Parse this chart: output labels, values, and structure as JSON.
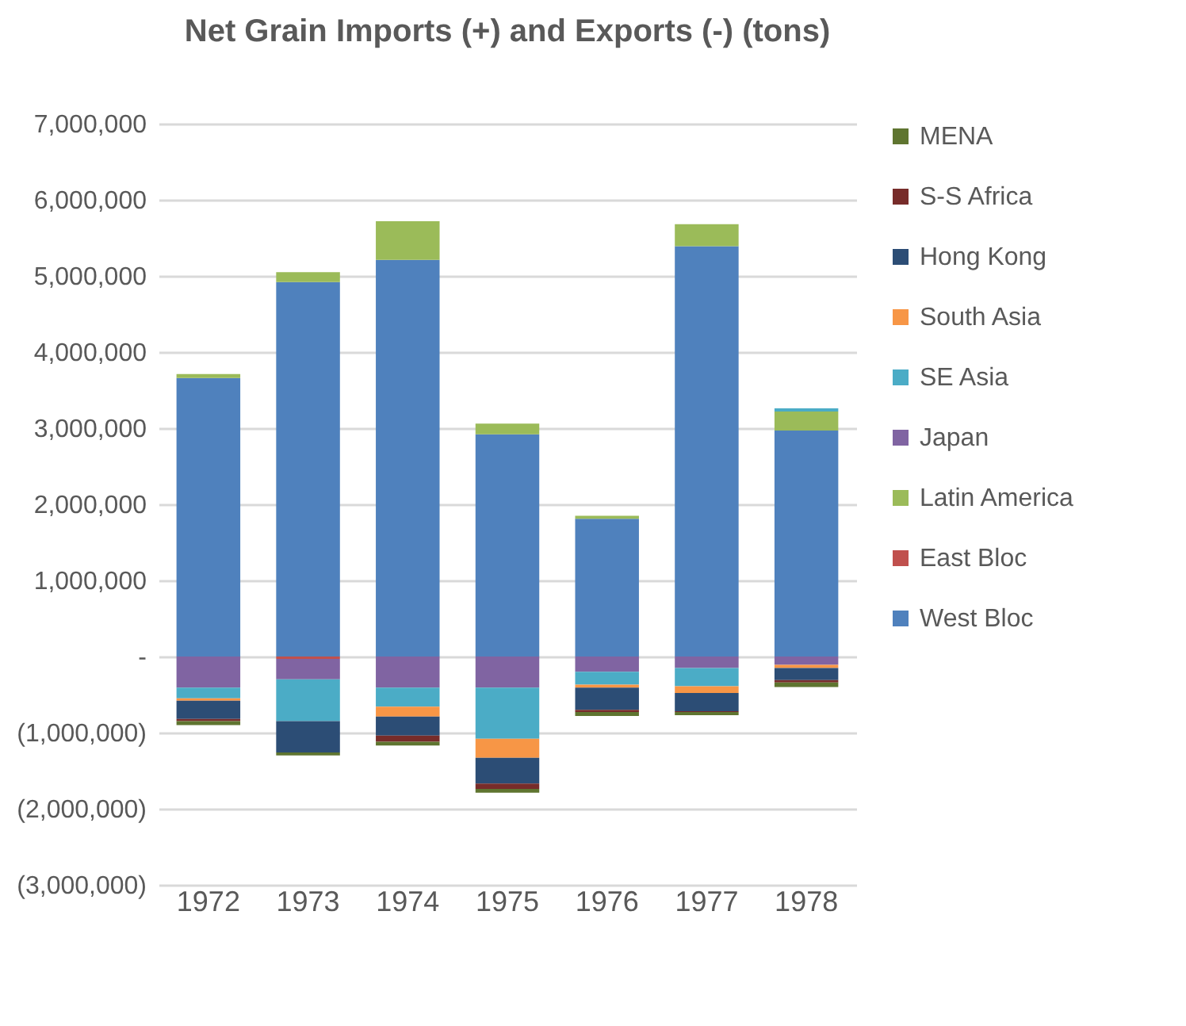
{
  "chart_data": {
    "type": "bar",
    "title": "Net Grain Imports (+) and Exports (-) (tons)",
    "stacked": true,
    "categories": [
      "1972",
      "1973",
      "1974",
      "1975",
      "1976",
      "1977",
      "1978"
    ],
    "series": [
      {
        "name": "West Bloc",
        "color": "#4f81bd",
        "values": [
          3660000,
          4920000,
          5210000,
          2920000,
          1810000,
          5390000,
          2970000
        ]
      },
      {
        "name": "East Bloc",
        "color": "#c0504d",
        "values": [
          0,
          -30000,
          0,
          0,
          0,
          0,
          0
        ]
      },
      {
        "name": "Latin America",
        "color": "#9bbb59",
        "values": [
          50000,
          130000,
          510000,
          140000,
          40000,
          290000,
          250000
        ]
      },
      {
        "name": "Japan",
        "color": "#8064a2",
        "values": [
          -410000,
          -270000,
          -410000,
          -410000,
          -200000,
          -150000,
          -110000
        ]
      },
      {
        "name": "SE Asia",
        "color": "#4bacc6",
        "values": [
          -140000,
          -550000,
          -250000,
          -670000,
          -170000,
          -240000,
          40000
        ]
      },
      {
        "name": "South Asia",
        "color": "#f79646",
        "values": [
          -30000,
          0,
          -130000,
          -250000,
          -40000,
          -90000,
          -40000
        ]
      },
      {
        "name": "Hong Kong",
        "color": "#2c4d75",
        "values": [
          -240000,
          -410000,
          -250000,
          -340000,
          -290000,
          -240000,
          -160000
        ]
      },
      {
        "name": "S-S Africa",
        "color": "#772c2a",
        "values": [
          -30000,
          0,
          -80000,
          -70000,
          -30000,
          -10000,
          -30000
        ]
      },
      {
        "name": "MENA",
        "color": "#5f7530",
        "values": [
          -50000,
          -40000,
          -50000,
          -50000,
          -50000,
          -40000,
          -60000
        ]
      }
    ],
    "ylim": [
      -3000000,
      7000000
    ],
    "yticks": [
      {
        "value": -3000000,
        "label": "(3,000,000)"
      },
      {
        "value": -2000000,
        "label": "(2,000,000)"
      },
      {
        "value": -1000000,
        "label": "(1,000,000)"
      },
      {
        "value": 0,
        "label": "-"
      },
      {
        "value": 1000000,
        "label": "1,000,000"
      },
      {
        "value": 2000000,
        "label": "2,000,000"
      },
      {
        "value": 3000000,
        "label": "3,000,000"
      },
      {
        "value": 4000000,
        "label": "4,000,000"
      },
      {
        "value": 5000000,
        "label": "5,000,000"
      },
      {
        "value": 6000000,
        "label": "6,000,000"
      },
      {
        "value": 7000000,
        "label": "7,000,000"
      }
    ],
    "grid": "y",
    "legend": "right"
  }
}
